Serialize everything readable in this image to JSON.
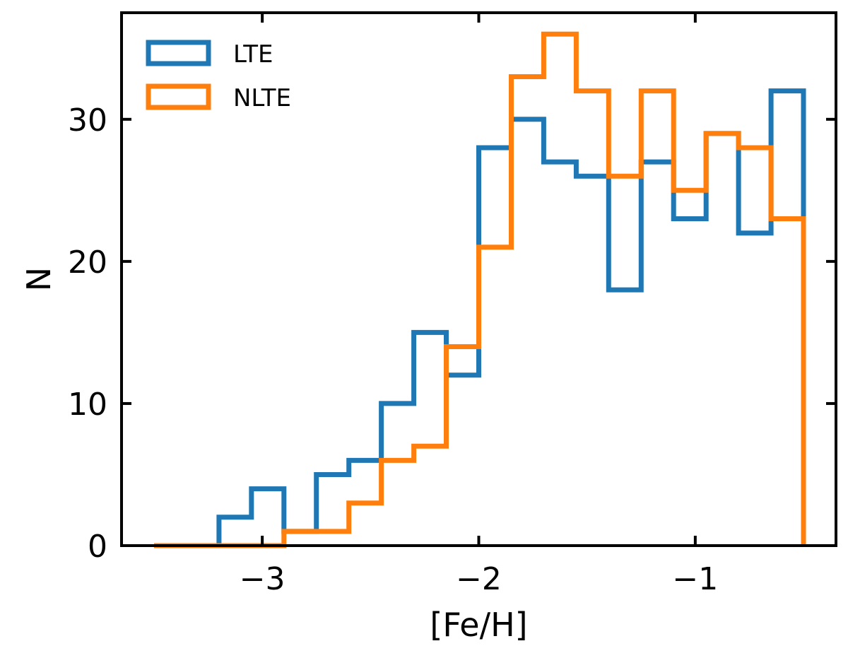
{
  "chart_data": {
    "type": "histogram",
    "xlabel": "[Fe/H]",
    "ylabel": "N",
    "xlim": [
      -3.65,
      -0.35
    ],
    "ylim": [
      0,
      37.5
    ],
    "xticks": [
      -3,
      -2,
      -1
    ],
    "xtick_labels": [
      "−3",
      "−2",
      "−1"
    ],
    "yticks": [
      0,
      10,
      20,
      30
    ],
    "ytick_labels": [
      "0",
      "10",
      "20",
      "30"
    ],
    "grid": false,
    "legend_position": "top-left",
    "bin_edges": [
      -3.5,
      -3.35,
      -3.2,
      -3.05,
      -2.9,
      -2.75,
      -2.6,
      -2.45,
      -2.3,
      -2.15,
      -2.0,
      -1.85,
      -1.7,
      -1.55,
      -1.4,
      -1.25,
      -1.1,
      -0.95,
      -0.8,
      -0.65,
      -0.5
    ],
    "series": [
      {
        "name": "LTE",
        "color": "#1f77b4",
        "values": [
          0,
          0,
          2,
          4,
          1,
          5,
          6,
          10,
          15,
          12,
          28,
          30,
          27,
          26,
          18,
          27,
          23,
          29,
          22,
          32
        ]
      },
      {
        "name": "NLTE",
        "color": "#ff7f0e",
        "values": [
          0,
          0,
          0,
          0,
          1,
          1,
          3,
          6,
          7,
          14,
          21,
          33,
          36,
          32,
          26,
          32,
          25,
          29,
          28,
          23
        ]
      }
    ]
  }
}
